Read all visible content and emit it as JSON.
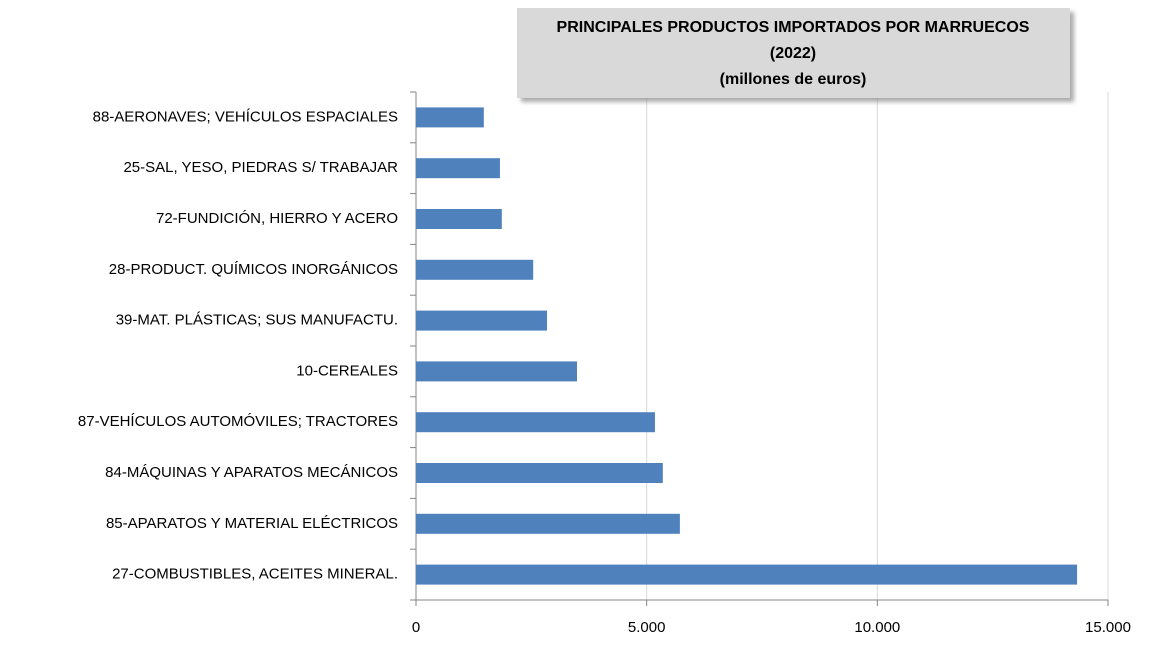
{
  "chart_data": {
    "type": "bar",
    "orientation": "horizontal",
    "title": "PRINCIPALES PRODUCTOS IMPORTADOS POR MARRUECOS",
    "subtitle": [
      "(2022)",
      "(millones de euros)"
    ],
    "categories": [
      "88-AERONAVES; VEHÍCULOS ESPACIALES",
      "25-SAL, YESO, PIEDRAS S/ TRABAJAR",
      "72-FUNDICIÓN, HIERRO Y ACERO",
      "28-PRODUCT. QUÍMICOS INORGÁNICOS",
      "39-MAT. PLÁSTICAS; SUS MANUFACTU.",
      "10-CEREALES",
      "87-VEHÍCULOS AUTOMÓVILES; TRACTORES",
      "84-MÁQUINAS Y APARATOS MECÁNICOS",
      "85-APARATOS Y MATERIAL ELÉCTRICOS",
      "27-COMBUSTIBLES, ACEITES MINERAL."
    ],
    "values": [
      1470,
      1820,
      1860,
      2540,
      2840,
      3490,
      5180,
      5350,
      5720,
      14330
    ],
    "color": "#4f81bd",
    "xlim": [
      0,
      15000
    ],
    "xticks": [
      0,
      {
        "value": 5000,
        "label": "5.000"
      },
      {
        "value": 10000,
        "label": "10.000"
      },
      {
        "value": 15000,
        "label": "15.000"
      }
    ],
    "grid": true
  }
}
